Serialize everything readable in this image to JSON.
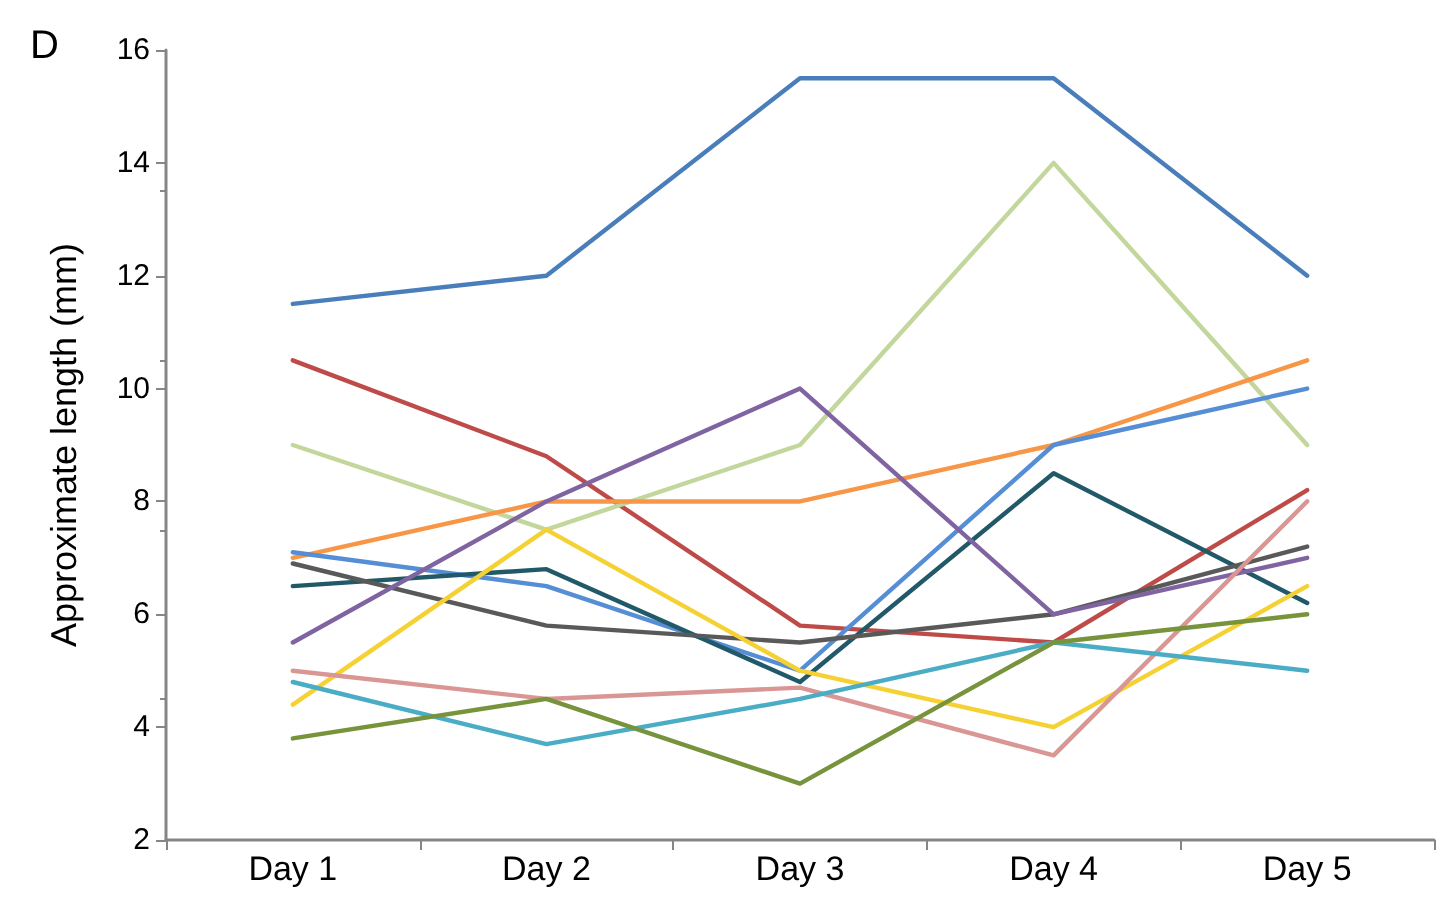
{
  "chart_data": {
    "type": "line",
    "title": "D",
    "ylabel": "Approximate length (mm)",
    "categories": [
      "Day 1",
      "Day 2",
      "Day 3",
      "Day 4",
      "Day 5"
    ],
    "ylim": [
      2,
      16
    ],
    "yticks": [
      2,
      4,
      6,
      8,
      10,
      12,
      14,
      16
    ],
    "grid": false,
    "marker": "none",
    "line_style": "solid",
    "series": [
      {
        "color": "#4a7ebb",
        "values": [
          11.5,
          12.0,
          15.5,
          15.5,
          12.0
        ]
      },
      {
        "color": "#be4b48",
        "values": [
          10.5,
          8.8,
          5.8,
          5.5,
          8.2
        ]
      },
      {
        "color": "#c3d69b",
        "values": [
          9.0,
          7.5,
          9.0,
          14.0,
          9.0
        ]
      },
      {
        "color": "#f79646",
        "values": [
          7.0,
          8.0,
          8.0,
          9.0,
          10.5
        ]
      },
      {
        "color": "#558ed5",
        "values": [
          7.1,
          6.5,
          5.0,
          9.0,
          10.0
        ]
      },
      {
        "color": "#215968",
        "values": [
          6.5,
          6.8,
          4.8,
          8.5,
          6.2
        ]
      },
      {
        "color": "#595959",
        "values": [
          6.9,
          5.8,
          5.5,
          6.0,
          7.2
        ]
      },
      {
        "color": "#8064a2",
        "values": [
          5.5,
          8.0,
          10.0,
          6.0,
          7.0
        ]
      },
      {
        "color": "#f5d133",
        "values": [
          4.4,
          7.5,
          5.0,
          4.0,
          6.5
        ]
      },
      {
        "color": "#d99694",
        "values": [
          5.0,
          4.5,
          4.7,
          3.5,
          8.0
        ]
      },
      {
        "color": "#4bacc6",
        "values": [
          4.8,
          3.7,
          4.5,
          5.5,
          5.0
        ]
      },
      {
        "color": "#77933c",
        "values": [
          3.8,
          4.5,
          3.0,
          5.5,
          6.0
        ]
      }
    ]
  }
}
